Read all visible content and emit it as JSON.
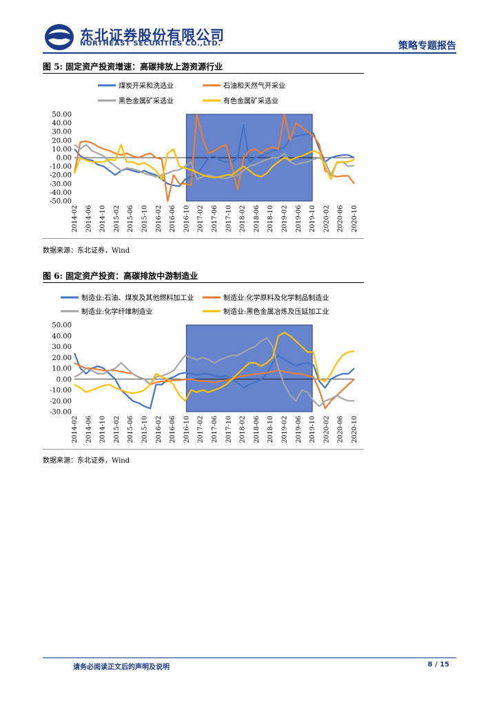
{
  "header": {
    "company_cn": "东北证券股份有限公司",
    "company_en": "NORTHEAST SECURITIES CO.,LTD.",
    "report_type": "策略专题报告",
    "brand_color": "#1a3a8a"
  },
  "figure5": {
    "title": "图 5: 固定资产投资增速：高碳排放上游资源行业",
    "source": "数据来源：东北证券，Wind"
  },
  "figure6": {
    "title": "图 6: 固定资产投资：高碳排放中游制造业",
    "source": "数据来源：东北证券，Wind"
  },
  "footer": {
    "note": "请务必阅读正文后的声明及说明",
    "page": "8 / 15"
  },
  "chart_data": [
    {
      "type": "line",
      "title": "",
      "ylim": [
        -50,
        50
      ],
      "yticks": [
        "50.00",
        "40.00",
        "30.00",
        "20.00",
        "10.00",
        "0.00",
        "-10.00",
        "-20.00",
        "-30.00",
        "-40.00",
        "-50.00"
      ],
      "xticks": [
        "2014-02",
        "2014-06",
        "2014-10",
        "2015-02",
        "2015-06",
        "2015-10",
        "2016-02",
        "2016-06",
        "2016-10",
        "2017-02",
        "2017-06",
        "2017-10",
        "2018-02",
        "2018-06",
        "2018-10",
        "2019-02",
        "2019-06",
        "2019-10",
        "2020-02",
        "2020-06",
        "2020-10"
      ],
      "highlight": {
        "from": "2016-10",
        "to": "2019-10",
        "color": "#4a6fc4"
      },
      "legend_position": "top",
      "series": [
        {
          "name": "煤炭开采和洗选业",
          "color": "#4472c4",
          "values": [
            10,
            2,
            -2,
            -3,
            -8,
            -10,
            -15,
            -20,
            -15,
            -13,
            -15,
            -17,
            -15,
            -18,
            -20,
            -25,
            -30,
            -32,
            -33,
            -25,
            -22,
            -20,
            -10,
            0,
            2,
            -3,
            -5,
            -5,
            0,
            38,
            -5,
            0,
            2,
            5,
            8,
            10,
            12,
            22,
            25,
            26,
            27,
            28,
            10,
            -5,
            0,
            2,
            3,
            3,
            0
          ]
        },
        {
          "name": "石油和天然气开采业",
          "color": "#ed7d31",
          "values": [
            -18,
            18,
            19,
            17,
            13,
            10,
            8,
            5,
            3,
            5,
            2,
            0,
            3,
            5,
            0,
            -2,
            -50,
            -20,
            -30,
            -30,
            -32,
            50,
            22,
            5,
            8,
            12,
            15,
            -10,
            -37,
            0,
            8,
            10,
            5,
            10,
            12,
            10,
            50,
            20,
            40,
            35,
            30,
            25,
            15,
            -15,
            -20,
            -22,
            -21,
            -21,
            -30
          ]
        },
        {
          "name": "黑色金属矿采选业",
          "color": "#a5a5a5",
          "values": [
            15,
            10,
            15,
            8,
            5,
            2,
            -5,
            -10,
            -15,
            -12,
            -13,
            -15,
            -18,
            -20,
            -22,
            -20,
            -18,
            -15,
            -14,
            -10,
            -5,
            -25,
            -22,
            -20,
            -22,
            -23,
            -24,
            -22,
            -20,
            -15,
            -10,
            -8,
            -5,
            -2,
            0,
            0,
            5,
            -5,
            -8,
            -6,
            -5,
            -2,
            0,
            -5,
            -20,
            -6,
            -5,
            -10,
            -9
          ]
        },
        {
          "name": "有色金属矿采选业",
          "color": "#ffc000",
          "values": [
            -18,
            0,
            -3,
            -5,
            -5,
            -5,
            -2,
            -3,
            15,
            -5,
            -5,
            -8,
            -6,
            -10,
            -15,
            -25,
            5,
            10,
            -10,
            -12,
            -14,
            -17,
            -20,
            -22,
            -23,
            -22,
            -20,
            -20,
            -15,
            -10,
            -15,
            -20,
            -22,
            -18,
            -10,
            -5,
            0,
            -3,
            0,
            2,
            5,
            8,
            5,
            -10,
            -25,
            -5,
            -5,
            -5,
            -2
          ]
        }
      ]
    },
    {
      "type": "line",
      "title": "",
      "ylim": [
        -30,
        50
      ],
      "yticks": [
        "50.00",
        "40.00",
        "30.00",
        "20.00",
        "10.00",
        "0.00",
        "-10.00",
        "-20.00",
        "-30.00"
      ],
      "xticks": [
        "2014-02",
        "2014-06",
        "2014-10",
        "2015-02",
        "2015-06",
        "2015-10",
        "2016-02",
        "2016-06",
        "2016-10",
        "2017-02",
        "2017-06",
        "2017-10",
        "2018-02",
        "2018-06",
        "2018-10",
        "2019-02",
        "2019-06",
        "2019-10",
        "2020-02",
        "2020-06",
        "2020-10"
      ],
      "highlight": {
        "from": "2016-10",
        "to": "2019-10",
        "color": "#4a6fc4"
      },
      "legend_position": "top",
      "series": [
        {
          "name": "制造业:石油、煤炭及其他燃料加工业",
          "color": "#4472c4",
          "values": [
            24,
            10,
            5,
            10,
            12,
            10,
            5,
            0,
            -10,
            -15,
            -20,
            -22,
            -25,
            -27,
            -5,
            -5,
            0,
            2,
            5,
            6,
            5,
            4,
            5,
            5,
            3,
            2,
            3,
            0,
            -3,
            -8,
            -5,
            -3,
            0,
            5,
            15,
            22,
            18,
            15,
            12,
            14,
            15,
            13,
            -2,
            -8,
            0,
            3,
            5,
            5,
            10
          ]
        },
        {
          "name": "制造业:化学原料及化学制品制造业",
          "color": "#ed7d31",
          "values": [
            15,
            12,
            10,
            10,
            9,
            8,
            8,
            8,
            7,
            6,
            5,
            2,
            0,
            -5,
            -3,
            -2,
            -2,
            -1,
            -1,
            0,
            0,
            -1,
            -2,
            -2,
            -3,
            -2,
            -1,
            0,
            2,
            3,
            4,
            5,
            5,
            6,
            7,
            8,
            7,
            6,
            5,
            5,
            3,
            2,
            -10,
            -27,
            -20,
            -15,
            -10,
            -5,
            0
          ]
        },
        {
          "name": "制造业:化学纤维制造业",
          "color": "#a5a5a5",
          "values": [
            2,
            5,
            10,
            8,
            5,
            5,
            8,
            10,
            15,
            10,
            5,
            2,
            0,
            -5,
            2,
            3,
            5,
            8,
            15,
            22,
            20,
            18,
            20,
            18,
            15,
            18,
            20,
            22,
            22,
            25,
            28,
            30,
            35,
            38,
            30,
            10,
            -5,
            -15,
            -20,
            -10,
            -12,
            -20,
            -25,
            -20,
            -18,
            -15,
            -18,
            -20,
            -20
          ]
        },
        {
          "name": "制造业:黑色金属冶炼及压延加工业",
          "color": "#ffc000",
          "values": [
            -5,
            -8,
            -12,
            -10,
            -8,
            -6,
            -5,
            -8,
            -10,
            -12,
            -13,
            -12,
            -10,
            -5,
            5,
            2,
            0,
            -5,
            -15,
            -20,
            -10,
            -12,
            -10,
            -12,
            -10,
            -8,
            -5,
            0,
            5,
            10,
            15,
            15,
            12,
            15,
            20,
            40,
            43,
            40,
            35,
            30,
            25,
            25,
            0,
            -2,
            5,
            15,
            22,
            25,
            26
          ]
        }
      ]
    }
  ]
}
